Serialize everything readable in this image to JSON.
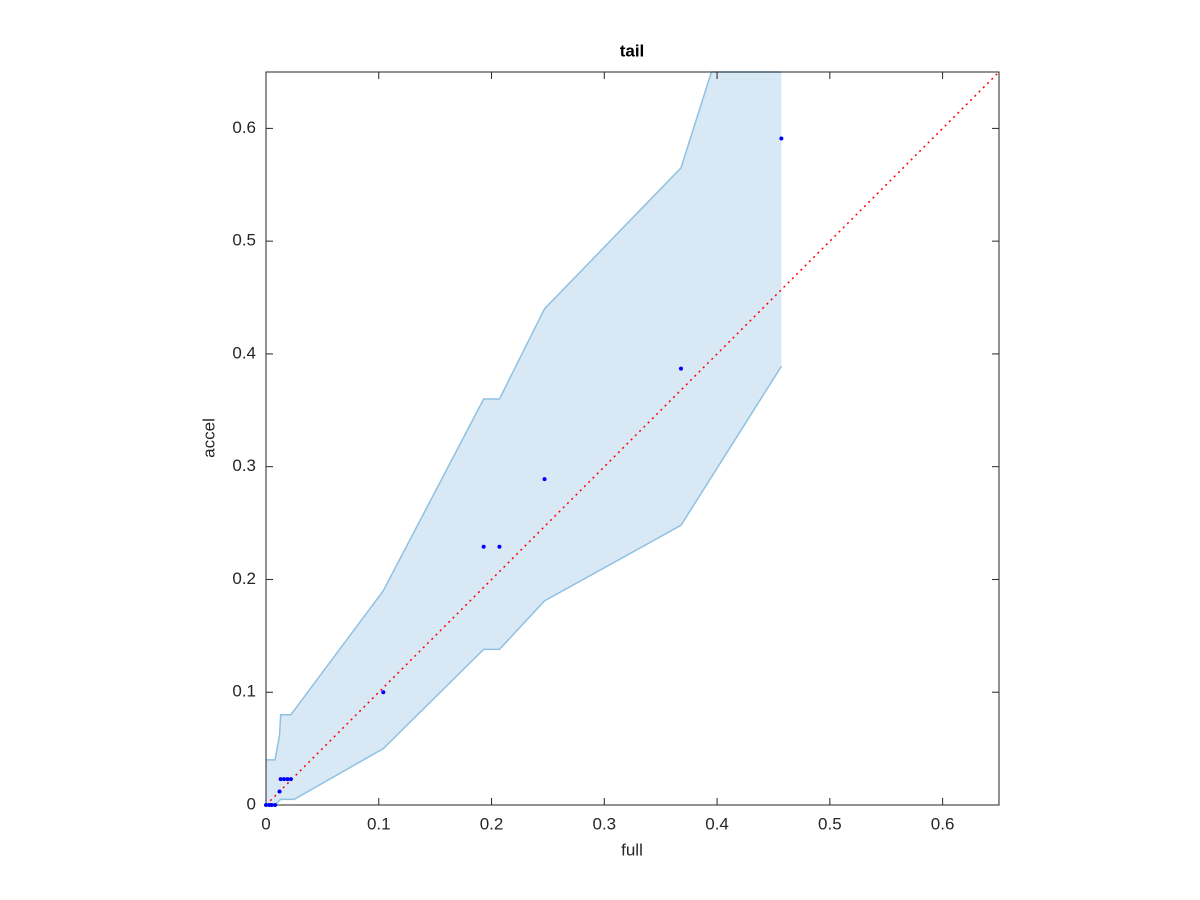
{
  "chart_data": {
    "type": "scatter",
    "title": "tail",
    "xlabel": "full",
    "ylabel": "accel",
    "xlim": [
      0,
      0.65
    ],
    "ylim": [
      0,
      0.65
    ],
    "xticks": [
      0,
      0.1,
      0.2,
      0.3,
      0.4,
      0.5,
      0.6
    ],
    "yticks": [
      0,
      0.1,
      0.2,
      0.3,
      0.4,
      0.5,
      0.6
    ],
    "series": [
      {
        "color": "#0000ff",
        "x": [
          0,
          0.003,
          0.005,
          0.008,
          0.012,
          0.013,
          0.016,
          0.019,
          0.022,
          0.104,
          0.193,
          0.207,
          0.247,
          0.368,
          0.457
        ],
        "values": [
          0,
          0,
          0,
          0,
          0.012,
          0.023,
          0.023,
          0.023,
          0.023,
          0.1,
          0.229,
          0.229,
          0.289,
          0.387,
          0.591
        ]
      }
    ],
    "band": {
      "color": "#d9e8f5",
      "edge_color": "#8fc1e3",
      "upper": {
        "x": [
          0,
          0.008,
          0.012,
          0.013,
          0.022,
          0.104,
          0.193,
          0.207,
          0.247,
          0.368,
          0.395,
          0.457
        ],
        "y": [
          0.04,
          0.04,
          0.062,
          0.08,
          0.08,
          0.19,
          0.36,
          0.36,
          0.44,
          0.565,
          0.65,
          0.65
        ]
      },
      "lower": {
        "x": [
          0,
          0.008,
          0.013,
          0.025,
          0.104,
          0.193,
          0.207,
          0.247,
          0.368,
          0.457
        ],
        "y": [
          0,
          0,
          0.005,
          0.005,
          0.05,
          0.138,
          0.138,
          0.181,
          0.248,
          0.389
        ]
      }
    },
    "reference_line": {
      "x": [
        0,
        0.65
      ],
      "y": [
        0,
        0.65
      ],
      "color": "#ff0000"
    }
  }
}
